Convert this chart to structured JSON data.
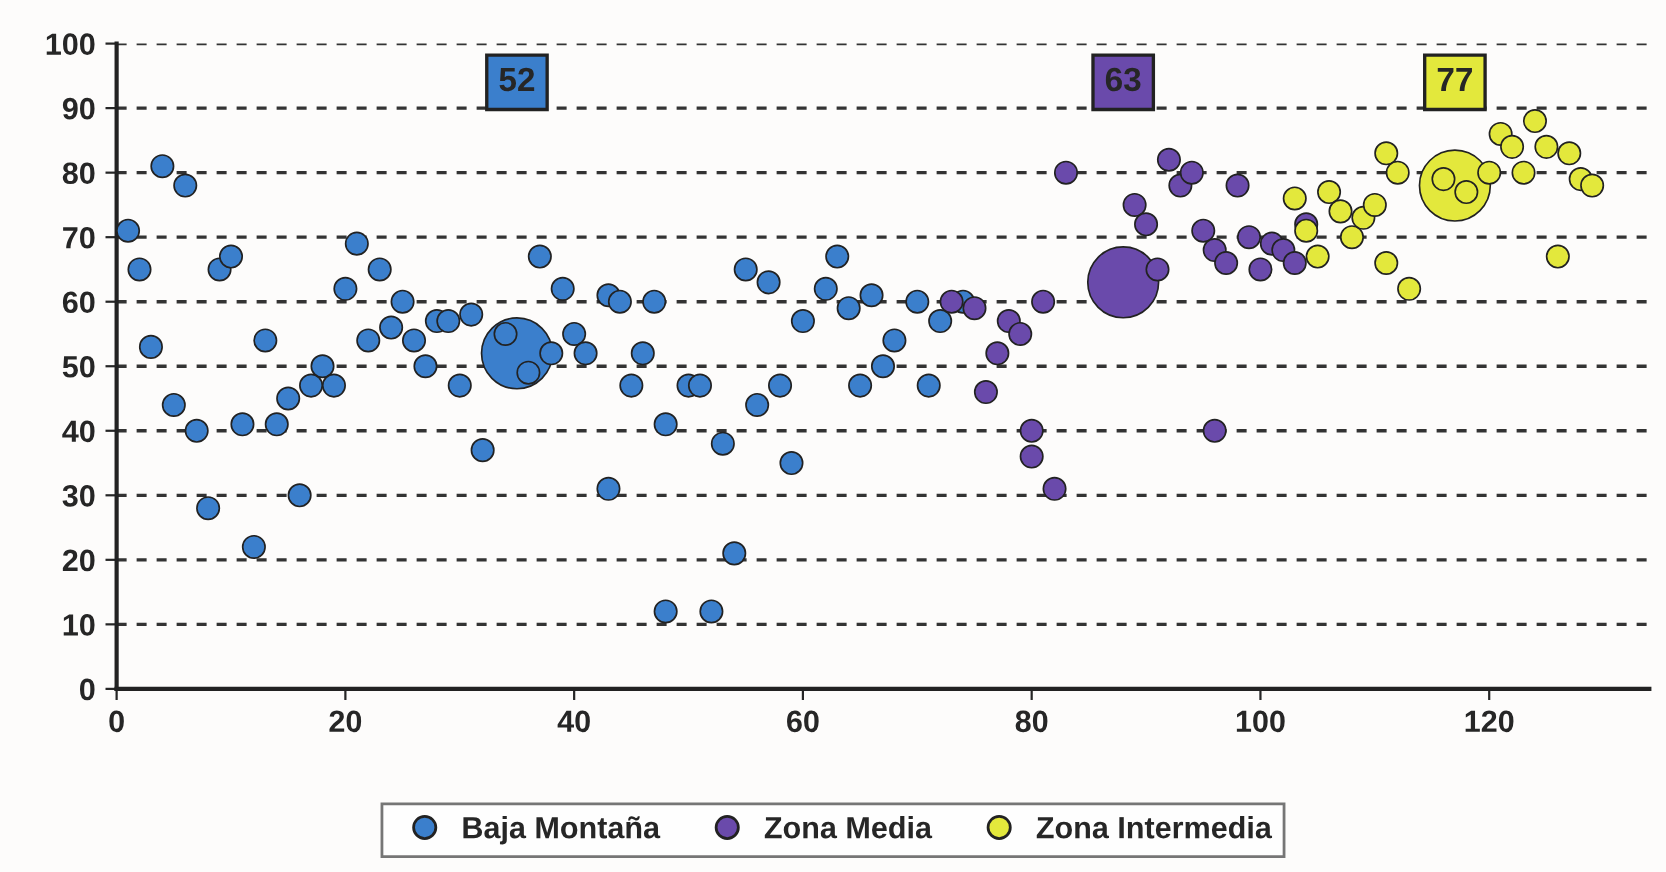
{
  "chart_data": {
    "type": "bubble",
    "series": [
      {
        "name": "Baja Montaña",
        "color": "#3b7fcc",
        "x": [
          1,
          2,
          3,
          4,
          5,
          6,
          7,
          8,
          9,
          10,
          11,
          12,
          13,
          14,
          15,
          16,
          17,
          18,
          19,
          20,
          21,
          22,
          23,
          24,
          25,
          26,
          27,
          28,
          29,
          30,
          31,
          32,
          34,
          36,
          37,
          38,
          39,
          40,
          41,
          43,
          43,
          44,
          45,
          46,
          47,
          48,
          48,
          50,
          51,
          52,
          53,
          54,
          55,
          56,
          57,
          58,
          59,
          60,
          62,
          63,
          64,
          65,
          66,
          67,
          68,
          70,
          71,
          72,
          74,
          35
        ],
        "values": [
          71,
          65,
          53,
          81,
          44,
          78,
          40,
          28,
          65,
          67,
          41,
          22,
          54,
          41,
          45,
          30,
          47,
          50,
          47,
          62,
          69,
          54,
          65,
          56,
          60,
          54,
          50,
          57,
          57,
          47,
          58,
          37,
          55,
          49,
          67,
          52,
          62,
          55,
          52,
          61,
          31,
          60,
          47,
          52,
          60,
          41,
          12,
          47,
          47,
          12,
          38,
          21,
          65,
          44,
          63,
          47,
          35,
          57,
          62,
          67,
          59,
          47,
          61,
          50,
          54,
          60,
          47,
          57,
          60,
          52
        ],
        "sizes": [
          0.1,
          0.1,
          0.1,
          0.1,
          0.1,
          0.1,
          0.1,
          0.1,
          0.1,
          0.1,
          0.1,
          0.1,
          0.1,
          0.1,
          0.1,
          0.1,
          0.1,
          0.1,
          0.1,
          0.1,
          0.1,
          0.1,
          0.1,
          0.1,
          0.1,
          0.1,
          0.1,
          0.1,
          0.1,
          0.1,
          0.1,
          0.1,
          0.1,
          0.1,
          0.1,
          0.1,
          0.1,
          0.1,
          0.1,
          0.1,
          0.1,
          0.1,
          0.1,
          0.1,
          0.1,
          0.1,
          0.1,
          0.1,
          0.1,
          0.1,
          0.1,
          0.1,
          0.1,
          0.1,
          0.1,
          0.1,
          0.1,
          0.1,
          0.1,
          0.1,
          0.1,
          0.1,
          0.1,
          0.1,
          0.1,
          0.1,
          0.1,
          0.1,
          0.1,
          1
        ]
      },
      {
        "name": "Zona Media",
        "color": "#6a4aab",
        "x": [
          73,
          75,
          76,
          77,
          78,
          79,
          80,
          80,
          81,
          82,
          83,
          89,
          90,
          91,
          92,
          93,
          94,
          95,
          96,
          96,
          97,
          98,
          99,
          100,
          101,
          102,
          103,
          104,
          88
        ],
        "values": [
          60,
          59,
          46,
          52,
          57,
          55,
          36,
          40,
          60,
          31,
          80,
          75,
          72,
          65,
          82,
          78,
          80,
          71,
          68,
          40,
          66,
          78,
          70,
          65,
          69,
          68,
          66,
          72,
          63
        ],
        "sizes": [
          0.1,
          0.1,
          0.1,
          0.1,
          0.1,
          0.1,
          0.1,
          0.1,
          0.1,
          0.1,
          0.1,
          0.1,
          0.1,
          0.1,
          0.1,
          0.1,
          0.1,
          0.1,
          0.1,
          0.1,
          0.1,
          0.1,
          0.1,
          0.1,
          0.1,
          0.1,
          0.1,
          0.1,
          1
        ]
      },
      {
        "name": "Zona Intermedia",
        "color": "#e3e83c",
        "x": [
          103,
          104,
          105,
          106,
          107,
          108,
          109,
          110,
          111,
          111,
          112,
          113,
          116,
          118,
          120,
          121,
          122,
          123,
          124,
          125,
          126,
          127,
          128,
          129,
          117
        ],
        "values": [
          76,
          71,
          67,
          77,
          74,
          70,
          73,
          75,
          66,
          83,
          80,
          62,
          79,
          77,
          80,
          86,
          84,
          80,
          88,
          84,
          67,
          83,
          79,
          78,
          78
        ],
        "sizes": [
          0.1,
          0.1,
          0.1,
          0.1,
          0.1,
          0.1,
          0.1,
          0.1,
          0.1,
          0.1,
          0.1,
          0.1,
          0.1,
          0.1,
          0.1,
          0.1,
          0.1,
          0.1,
          0.1,
          0.1,
          0.1,
          0.1,
          0.1,
          0.1,
          1
        ]
      }
    ],
    "annotations": [
      "52",
      "63",
      "77"
    ],
    "xlim": [
      0,
      134
    ],
    "xticks": [
      0,
      20,
      40,
      60,
      80,
      100,
      120
    ],
    "ylim": [
      0,
      100
    ],
    "yticks": [
      0,
      10,
      20,
      30,
      40,
      50,
      60,
      70,
      80,
      90,
      100
    ],
    "grid": "y",
    "legend": "bottom"
  }
}
